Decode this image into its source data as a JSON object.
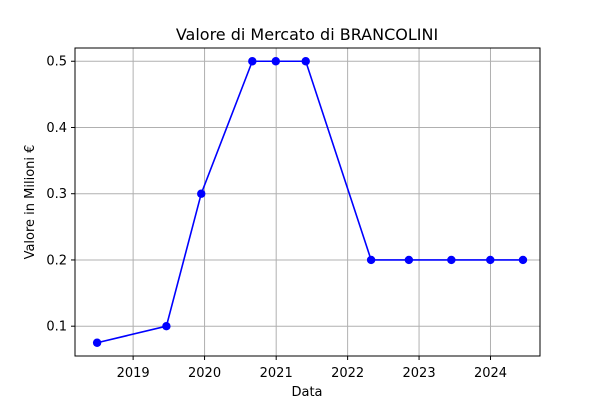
{
  "chart_data": {
    "type": "line",
    "title": "Valore di Mercato di BRANCOLINI",
    "xlabel": "Data",
    "ylabel": "Valore in Milioni €",
    "x_axis": "date",
    "xlim": [
      "2018-03-10",
      "2024-09-10"
    ],
    "ylim": [
      0.055,
      0.52
    ],
    "x_ticks": [
      {
        "date": "2019-01-01",
        "label": "2019"
      },
      {
        "date": "2020-01-01",
        "label": "2020"
      },
      {
        "date": "2021-01-01",
        "label": "2021"
      },
      {
        "date": "2022-01-01",
        "label": "2022"
      },
      {
        "date": "2023-01-01",
        "label": "2023"
      },
      {
        "date": "2024-01-01",
        "label": "2024"
      }
    ],
    "y_ticks": [
      0.1,
      0.2,
      0.3,
      0.4,
      0.5
    ],
    "y_tick_labels": [
      "0.1",
      "0.2",
      "0.3",
      "0.4",
      "0.5"
    ],
    "grid": true,
    "color": "#0000ff",
    "series": [
      {
        "x": [
          "2018-07-01",
          "2019-06-20",
          "2019-12-15",
          "2020-09-01",
          "2020-12-30",
          "2021-06-01",
          "2022-05-01",
          "2022-11-10",
          "2023-06-15",
          "2023-12-31",
          "2024-06-15"
        ],
        "values": [
          0.075,
          0.1,
          0.3,
          0.5,
          0.5,
          0.5,
          0.2,
          0.2,
          0.2,
          0.2,
          0.2
        ]
      }
    ]
  }
}
